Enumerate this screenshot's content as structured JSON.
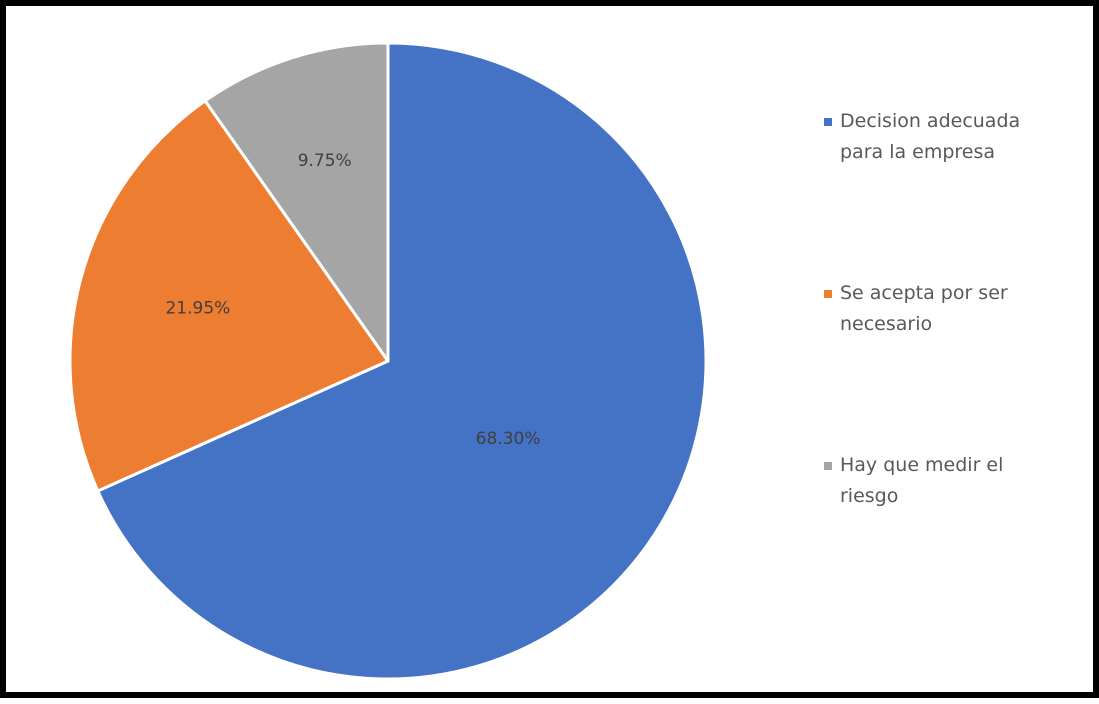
{
  "chart_data": {
    "type": "pie",
    "title": "",
    "categories": [
      "Decision adecuada para la empresa",
      "Se acepta por ser necesario",
      "Hay que medir el riesgo"
    ],
    "values": [
      68.3,
      21.95,
      9.75
    ],
    "data_labels": [
      "68.30%",
      "21.95%",
      "9.75%"
    ],
    "colors": [
      "#4472C4",
      "#ED7D31",
      "#A5A5A5"
    ],
    "start_angle_deg": 0,
    "direction": "clockwise",
    "legend_position": "right"
  },
  "legend": {
    "items": [
      {
        "line1": "Decision adecuada",
        "line2": "para la empresa"
      },
      {
        "line1": "Se acepta por ser",
        "line2": "necesario"
      },
      {
        "line1": "Hay que medir el",
        "line2": "riesgo"
      }
    ]
  }
}
